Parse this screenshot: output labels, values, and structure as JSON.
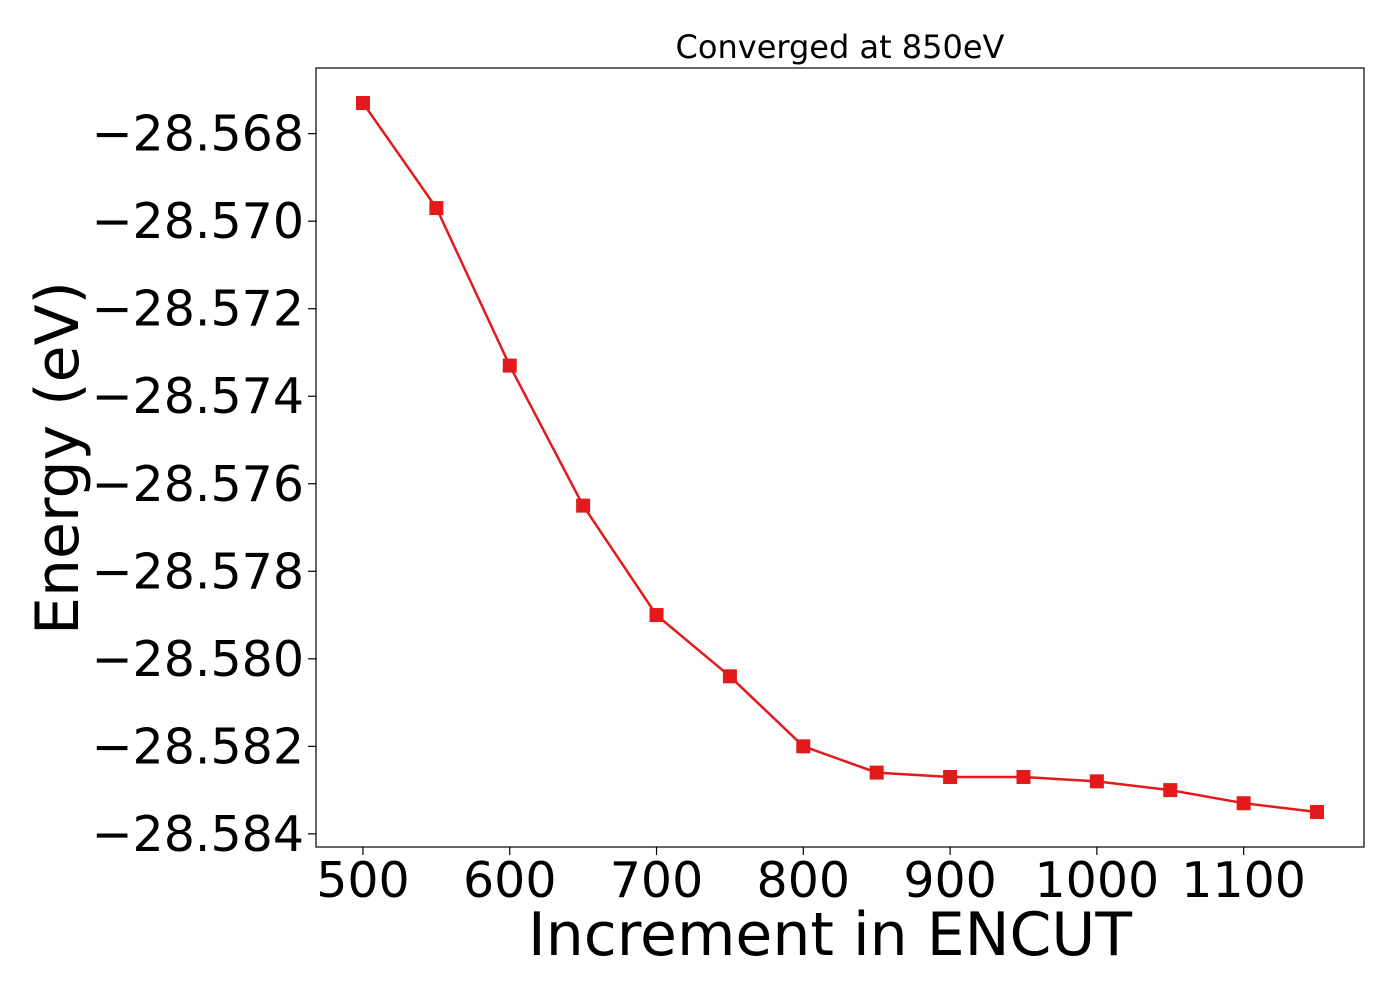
{
  "chart_data": {
    "type": "line",
    "title": "Converged at 850eV",
    "xlabel": "Increment in ENCUT",
    "ylabel": "Energy (eV)",
    "xlim": [
      468,
      1182
    ],
    "ylim": [
      -28.5843,
      -28.5665
    ],
    "x_ticks": [
      500,
      600,
      700,
      800,
      900,
      1000,
      1100
    ],
    "x_tick_labels": [
      "500",
      "600",
      "700",
      "800",
      "900",
      "1000",
      "1100"
    ],
    "y_ticks": [
      -28.568,
      -28.57,
      -28.572,
      -28.574,
      -28.576,
      -28.578,
      -28.58,
      -28.582,
      -28.584
    ],
    "y_tick_labels": [
      "−28.568",
      "−28.570",
      "−28.572",
      "−28.574",
      "−28.576",
      "−28.578",
      "−28.580",
      "−28.582",
      "−28.584"
    ],
    "grid": false,
    "legend": "none",
    "series": [
      {
        "color": "#e31a1c",
        "marker": "square",
        "x": [
          500,
          550,
          600,
          650,
          700,
          750,
          800,
          850,
          900,
          950,
          1000,
          1050,
          1100,
          1150
        ],
        "y": [
          -28.5673,
          -28.5697,
          -28.5733,
          -28.5765,
          -28.579,
          -28.5804,
          -28.582,
          -28.5826,
          -28.5827,
          -28.5827,
          -28.5828,
          -28.583,
          -28.5833,
          -28.5835
        ]
      }
    ]
  }
}
